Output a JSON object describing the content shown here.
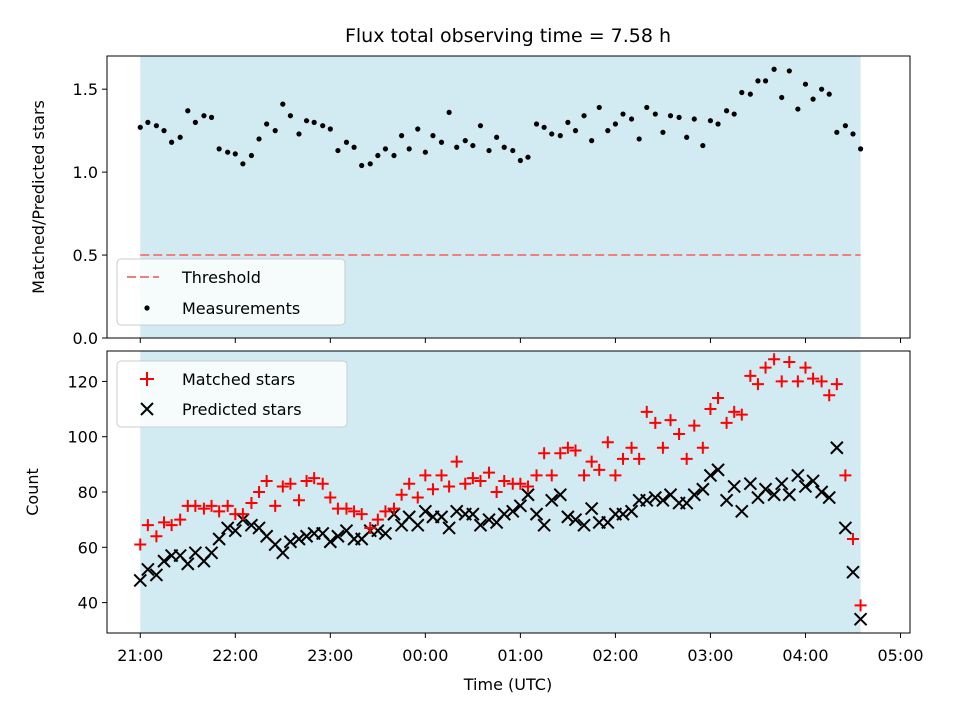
{
  "figure": {
    "title": "Flux total observing time = 7.58 h",
    "xlabel": "Time (UTC)",
    "x_tick_labels": [
      "21:00",
      "22:00",
      "23:00",
      "00:00",
      "01:00",
      "02:00",
      "03:00",
      "04:00",
      "05:00"
    ]
  },
  "colors": {
    "shade": "#add8e6",
    "threshold": "#f08080",
    "measurements": "#000000",
    "matched": "#ff0000",
    "predicted": "#000000"
  },
  "chart_data": [
    {
      "type": "scatter",
      "ylabel": "Matched/Predicted stars",
      "x_unit": "hours after 21:00 UTC",
      "xlim": [
        -0.35,
        8.1
      ],
      "ylim": [
        0,
        1.7
      ],
      "yticks": [
        "0.0",
        "0.5",
        "1.0",
        "1.5"
      ],
      "observing_window": [
        0.0,
        7.58
      ],
      "threshold": 0.5,
      "legend": {
        "position": "lower left",
        "entries": [
          "Threshold",
          "Measurements"
        ]
      },
      "series": [
        {
          "name": "Measurements",
          "x": [
            0.0,
            0.08,
            0.17,
            0.25,
            0.33,
            0.42,
            0.5,
            0.58,
            0.67,
            0.75,
            0.83,
            0.92,
            1.0,
            1.08,
            1.17,
            1.25,
            1.33,
            1.42,
            1.5,
            1.58,
            1.67,
            1.75,
            1.83,
            1.92,
            2.0,
            2.08,
            2.17,
            2.25,
            2.33,
            2.42,
            2.5,
            2.58,
            2.67,
            2.75,
            2.83,
            2.92,
            3.0,
            3.08,
            3.17,
            3.25,
            3.33,
            3.42,
            3.5,
            3.58,
            3.67,
            3.75,
            3.83,
            3.92,
            4.0,
            4.08,
            4.17,
            4.25,
            4.33,
            4.42,
            4.5,
            4.58,
            4.67,
            4.75,
            4.83,
            4.92,
            5.0,
            5.08,
            5.17,
            5.25,
            5.33,
            5.42,
            5.5,
            5.58,
            5.67,
            5.75,
            5.83,
            5.92,
            6.0,
            6.08,
            6.17,
            6.25,
            6.33,
            6.42,
            6.5,
            6.58,
            6.67,
            6.75,
            6.83,
            6.92,
            7.0,
            7.08,
            7.17,
            7.25,
            7.33,
            7.42,
            7.5,
            7.58
          ],
          "y": [
            1.27,
            1.3,
            1.28,
            1.25,
            1.18,
            1.21,
            1.37,
            1.3,
            1.34,
            1.33,
            1.14,
            1.12,
            1.11,
            1.05,
            1.1,
            1.2,
            1.29,
            1.25,
            1.41,
            1.34,
            1.23,
            1.31,
            1.3,
            1.28,
            1.26,
            1.13,
            1.18,
            1.15,
            1.04,
            1.05,
            1.1,
            1.14,
            1.1,
            1.22,
            1.14,
            1.26,
            1.12,
            1.22,
            1.18,
            1.36,
            1.15,
            1.19,
            1.16,
            1.28,
            1.13,
            1.21,
            1.15,
            1.13,
            1.07,
            1.09,
            1.29,
            1.27,
            1.23,
            1.22,
            1.3,
            1.25,
            1.34,
            1.19,
            1.39,
            1.25,
            1.29,
            1.35,
            1.32,
            1.2,
            1.39,
            1.35,
            1.24,
            1.34,
            1.33,
            1.21,
            1.32,
            1.16,
            1.31,
            1.29,
            1.37,
            1.35,
            1.48,
            1.47,
            1.55,
            1.55,
            1.62,
            1.45,
            1.61,
            1.38,
            1.53,
            1.44,
            1.5,
            1.47,
            1.24,
            1.28,
            1.23,
            1.14
          ]
        }
      ]
    },
    {
      "type": "scatter",
      "ylabel": "Count",
      "x_unit": "hours after 21:00 UTC",
      "xlim": [
        -0.35,
        8.1
      ],
      "ylim": [
        29,
        131
      ],
      "yticks": [
        "40",
        "60",
        "80",
        "100",
        "120"
      ],
      "observing_window": [
        0.0,
        7.58
      ],
      "legend": {
        "position": "upper left",
        "entries": [
          "Matched stars",
          "Predicted stars"
        ]
      },
      "series": [
        {
          "name": "Matched stars",
          "x": [
            0.0,
            0.08,
            0.17,
            0.25,
            0.33,
            0.42,
            0.5,
            0.58,
            0.67,
            0.75,
            0.83,
            0.92,
            1.0,
            1.08,
            1.17,
            1.25,
            1.33,
            1.42,
            1.5,
            1.58,
            1.67,
            1.75,
            1.83,
            1.92,
            2.0,
            2.08,
            2.17,
            2.25,
            2.33,
            2.42,
            2.5,
            2.58,
            2.67,
            2.75,
            2.83,
            2.92,
            3.0,
            3.08,
            3.17,
            3.25,
            3.33,
            3.42,
            3.5,
            3.58,
            3.67,
            3.75,
            3.83,
            3.92,
            4.0,
            4.08,
            4.17,
            4.25,
            4.33,
            4.42,
            4.5,
            4.58,
            4.67,
            4.75,
            4.83,
            4.92,
            5.0,
            5.08,
            5.17,
            5.25,
            5.33,
            5.42,
            5.5,
            5.58,
            5.67,
            5.75,
            5.83,
            5.92,
            6.0,
            6.08,
            6.17,
            6.25,
            6.33,
            6.42,
            6.5,
            6.58,
            6.67,
            6.75,
            6.83,
            6.92,
            7.0,
            7.08,
            7.17,
            7.25,
            7.33,
            7.42,
            7.5,
            7.58
          ],
          "y": [
            61,
            68,
            64,
            69,
            68,
            70,
            75,
            75,
            74,
            75,
            73,
            75,
            72,
            72,
            76,
            80,
            84,
            75,
            82,
            83,
            77,
            84,
            85,
            83,
            78,
            74,
            74,
            73,
            72,
            67,
            70,
            73,
            74,
            79,
            83,
            78,
            86,
            81,
            86,
            82,
            91,
            83,
            85,
            84,
            87,
            80,
            84,
            83,
            83,
            82,
            86,
            94,
            86,
            94,
            96,
            95,
            86,
            91,
            88,
            98,
            86,
            92,
            96,
            92,
            109,
            105,
            96,
            106,
            101,
            92,
            104,
            96,
            110,
            114,
            105,
            109,
            108,
            122,
            119,
            125,
            128,
            120,
            127,
            120,
            125,
            121,
            120,
            115,
            119,
            86,
            63,
            39
          ]
        },
        {
          "name": "Predicted stars",
          "x": [
            0.0,
            0.08,
            0.17,
            0.25,
            0.33,
            0.42,
            0.5,
            0.58,
            0.67,
            0.75,
            0.83,
            0.92,
            1.0,
            1.08,
            1.17,
            1.25,
            1.33,
            1.42,
            1.5,
            1.58,
            1.67,
            1.75,
            1.83,
            1.92,
            2.0,
            2.08,
            2.17,
            2.25,
            2.33,
            2.42,
            2.5,
            2.58,
            2.67,
            2.75,
            2.83,
            2.92,
            3.0,
            3.08,
            3.17,
            3.25,
            3.33,
            3.42,
            3.5,
            3.58,
            3.67,
            3.75,
            3.83,
            3.92,
            4.0,
            4.08,
            4.17,
            4.25,
            4.33,
            4.42,
            4.5,
            4.58,
            4.67,
            4.75,
            4.83,
            4.92,
            5.0,
            5.08,
            5.17,
            5.25,
            5.33,
            5.42,
            5.5,
            5.58,
            5.67,
            5.75,
            5.83,
            5.92,
            6.0,
            6.08,
            6.17,
            6.25,
            6.33,
            6.42,
            6.5,
            6.58,
            6.67,
            6.75,
            6.83,
            6.92,
            7.0,
            7.08,
            7.17,
            7.25,
            7.33,
            7.42,
            7.5,
            7.58
          ],
          "y": [
            48,
            52,
            50,
            55,
            57,
            57,
            54,
            58,
            55,
            58,
            63,
            67,
            66,
            70,
            68,
            67,
            64,
            61,
            58,
            62,
            63,
            64,
            65,
            65,
            62,
            64,
            66,
            63,
            63,
            66,
            66,
            65,
            72,
            68,
            71,
            68,
            73,
            71,
            71,
            67,
            73,
            72,
            72,
            68,
            70,
            69,
            72,
            73,
            75,
            79,
            72,
            68,
            77,
            79,
            71,
            70,
            68,
            74,
            69,
            69,
            72,
            72,
            73,
            77,
            77,
            78,
            77,
            79,
            76,
            76,
            79,
            81,
            86,
            88,
            77,
            82,
            73,
            83,
            78,
            81,
            79,
            83,
            79,
            86,
            82,
            84,
            80,
            78,
            96,
            67,
            51,
            34
          ]
        }
      ]
    }
  ]
}
